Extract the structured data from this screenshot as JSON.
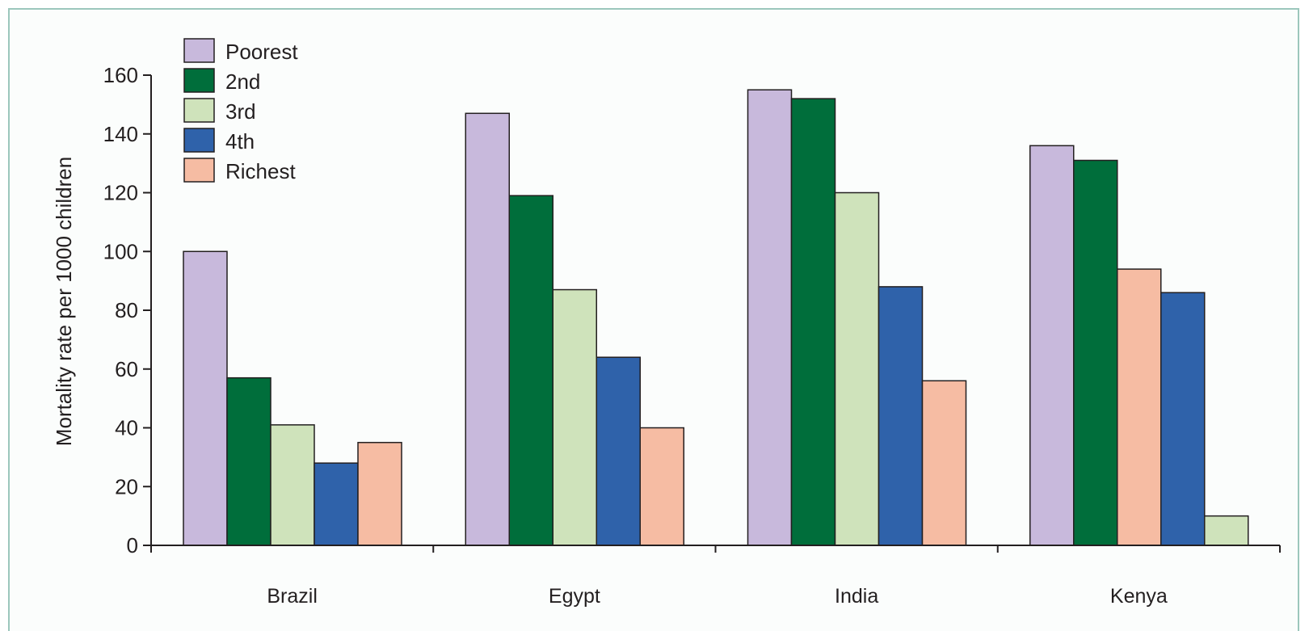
{
  "chart_data": {
    "type": "bar",
    "categories": [
      "Brazil",
      "Egypt",
      "India",
      "Kenya"
    ],
    "series": [
      {
        "name": "Poorest",
        "color": "#c8b9dc",
        "values": [
          100,
          147,
          155,
          136
        ]
      },
      {
        "name": "2nd",
        "color": "#006e3b",
        "values": [
          57,
          119,
          152,
          131
        ]
      },
      {
        "name": "3rd",
        "color": "#cfe3bb",
        "values": [
          41,
          87,
          120,
          10
        ]
      },
      {
        "name": "4th",
        "color": "#2f62aa",
        "values": [
          28,
          64,
          88,
          86
        ]
      },
      {
        "name": "Richest",
        "color": "#f6bca3",
        "values": [
          35,
          40,
          56,
          94
        ]
      }
    ],
    "kenya_bar_order": [
      "Poorest",
      "2nd",
      "Richest",
      "4th",
      "3rd"
    ],
    "title": "",
    "xlabel": "",
    "ylabel": "Mortality rate per 1000 children",
    "ylim": [
      0,
      160
    ],
    "yticks": [
      0,
      20,
      40,
      60,
      80,
      100,
      120,
      140,
      160
    ],
    "grid": false,
    "legend_position": "top-left"
  },
  "colors": {
    "frame_border": "#9cc7bc",
    "background": "#fbfdfc",
    "bar_outline": "#231f20"
  }
}
